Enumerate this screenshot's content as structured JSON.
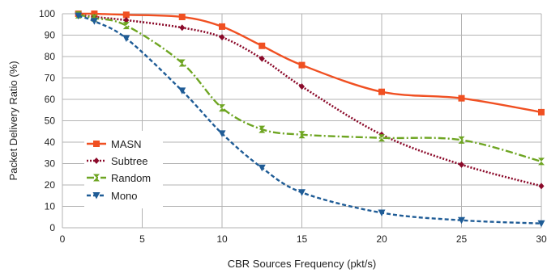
{
  "chart_data": {
    "type": "line",
    "title": "",
    "xlabel": "CBR Sources Frequency (pkt/s)",
    "ylabel": "Packet Delivery Ratio (%)",
    "xlim": [
      0,
      30
    ],
    "ylim": [
      0,
      100
    ],
    "xticks": [
      0,
      5,
      10,
      15,
      20,
      25,
      30
    ],
    "yticks": [
      0,
      10,
      20,
      30,
      40,
      50,
      60,
      70,
      80,
      90,
      100
    ],
    "grid": true,
    "legend_position": "left-middle",
    "x": [
      1,
      2,
      4,
      7.5,
      10,
      12.5,
      15,
      20,
      25,
      30
    ],
    "series": [
      {
        "name": "MASN",
        "values": [
          100,
          100,
          99.5,
          98.5,
          94,
          85,
          76,
          63.5,
          60.5,
          54
        ],
        "color": "#f05022",
        "marker": "square",
        "dash": "solid"
      },
      {
        "name": "Subtree",
        "values": [
          99.5,
          98.5,
          97,
          93.5,
          89,
          79,
          66,
          43.5,
          29.5,
          19.5
        ],
        "color": "#8b0a2a",
        "marker": "diamond",
        "dash": "dotted"
      },
      {
        "name": "Random",
        "values": [
          99.5,
          98,
          94.5,
          77,
          56,
          46,
          43.5,
          42,
          41,
          31
        ],
        "color": "#6ea522",
        "marker": "hourglass",
        "dash": "dashdot"
      },
      {
        "name": "Mono",
        "values": [
          99,
          96.5,
          88.5,
          64,
          44,
          28,
          16.5,
          7,
          3.5,
          2
        ],
        "color": "#1f5c96",
        "marker": "triangle-down",
        "dash": "dashed"
      }
    ]
  }
}
